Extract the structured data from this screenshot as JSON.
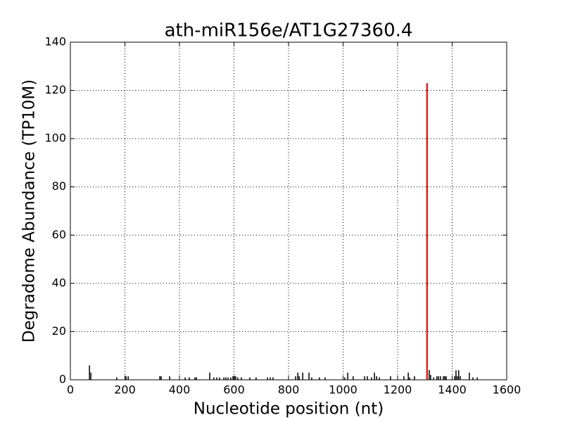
{
  "chart_data": {
    "type": "spike",
    "title": "ath-miR156e/AT1G27360.4",
    "xlabel": "Nucleotide position (nt)",
    "ylabel": "Degradome Abundance (TP10M)",
    "x": [
      70,
      75,
      170,
      204,
      212,
      328,
      333,
      364,
      421,
      436,
      457,
      462,
      511,
      526,
      537,
      547,
      563,
      570,
      578,
      588,
      596,
      601,
      606,
      614,
      627,
      658,
      681,
      723,
      733,
      743,
      826,
      834,
      839,
      852,
      875,
      885,
      913,
      934,
      1006,
      1017,
      1037,
      1079,
      1089,
      1104,
      1115,
      1123,
      1133,
      1174,
      1223,
      1239,
      1244,
      1262,
      1308,
      1316,
      1321,
      1332,
      1344,
      1350,
      1357,
      1368,
      1373,
      1378,
      1409,
      1414,
      1419,
      1424,
      1430,
      1463,
      1476,
      1492
    ],
    "values": [
      6,
      3,
      1,
      1.5,
      1.5,
      1.5,
      1.5,
      1.5,
      1,
      1,
      1,
      1,
      3,
      1,
      1,
      1,
      1,
      1,
      1,
      1,
      1.5,
      1.5,
      1.5,
      1,
      1,
      1,
      1,
      1,
      1,
      1,
      1.5,
      3,
      1.5,
      3,
      3,
      1,
      1,
      1,
      1,
      3,
      1.5,
      1.5,
      1.5,
      1,
      3,
      1.5,
      1,
      1.5,
      1.5,
      3,
      1,
      1.5,
      123,
      4,
      2,
      1,
      1.5,
      1.5,
      1.5,
      1.5,
      1.5,
      1.5,
      1.5,
      4,
      1.5,
      4,
      1.5,
      3,
      1,
      1
    ],
    "colors": [
      "#000000",
      "#000000",
      "#000000",
      "#000000",
      "#000000",
      "#000000",
      "#000000",
      "#000000",
      "#000000",
      "#000000",
      "#000000",
      "#000000",
      "#000000",
      "#000000",
      "#000000",
      "#000000",
      "#000000",
      "#000000",
      "#000000",
      "#000000",
      "#000000",
      "#000000",
      "#000000",
      "#000000",
      "#000000",
      "#000000",
      "#000000",
      "#000000",
      "#000000",
      "#000000",
      "#000000",
      "#000000",
      "#000000",
      "#000000",
      "#000000",
      "#000000",
      "#000000",
      "#000000",
      "#000000",
      "#000000",
      "#000000",
      "#000000",
      "#000000",
      "#000000",
      "#000000",
      "#000000",
      "#000000",
      "#000000",
      "#000000",
      "#000000",
      "#000000",
      "#000000",
      "#d62020",
      "#000000",
      "#000000",
      "#000000",
      "#000000",
      "#000000",
      "#000000",
      "#000000",
      "#000000",
      "#000000",
      "#000000",
      "#000000",
      "#000000",
      "#000000",
      "#000000",
      "#000000",
      "#000000",
      "#000000"
    ],
    "xlim": [
      0,
      1600
    ],
    "xticks": [
      0,
      200,
      400,
      600,
      800,
      1000,
      1200,
      1400,
      1600
    ],
    "ylim": [
      0,
      140
    ],
    "yticks": [
      0,
      20,
      40,
      60,
      80,
      100,
      120,
      140
    ],
    "grid": true
  }
}
